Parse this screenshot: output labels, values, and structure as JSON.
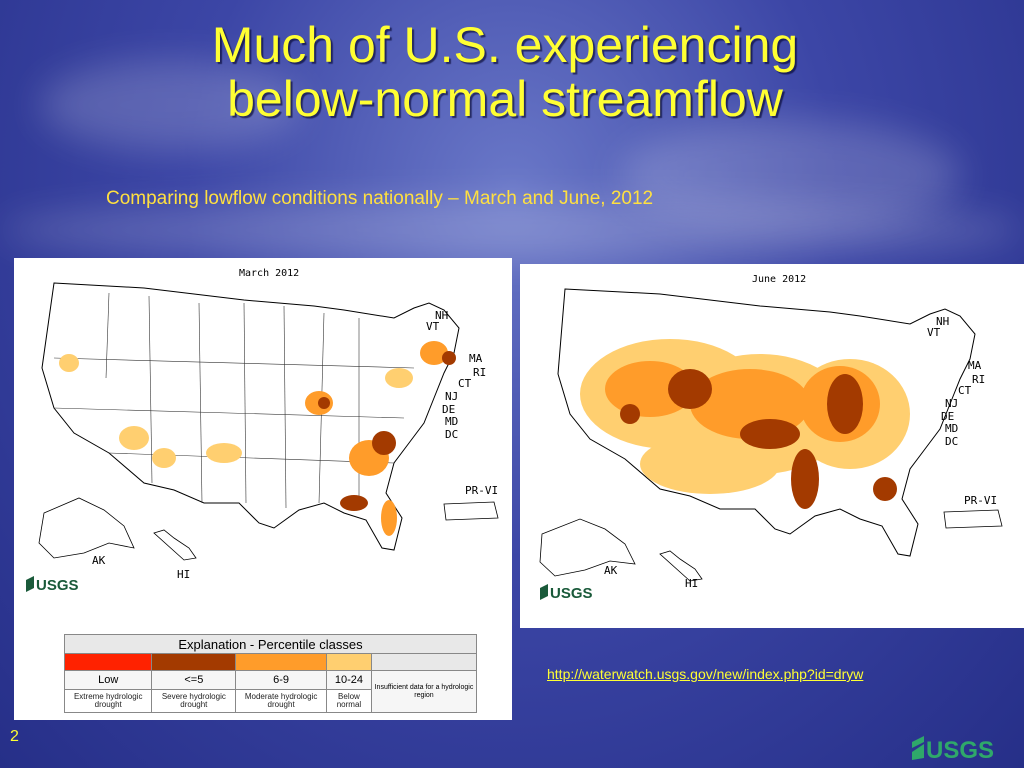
{
  "slide": {
    "title_line1": "Much of U.S. experiencing",
    "title_line2": "below-normal streamflow",
    "subtitle": "Comparing lowflow conditions nationally – March and June, 2012",
    "link": "http://waterwatch.usgs.gov/new/index.php?id=dryw",
    "page_number": "2",
    "logo": "USGS"
  },
  "maps": [
    {
      "title": "March 2012",
      "logo": "USGS"
    },
    {
      "title": "June 2012",
      "logo": "USGS"
    }
  ],
  "state_labels": {
    "nh": "NH",
    "vt": "VT",
    "ma": "MA",
    "ri": "RI",
    "ct": "CT",
    "nj": "NJ",
    "de": "DE",
    "md": "MD",
    "dc": "DC",
    "pr": "PR-VI",
    "ak": "AK",
    "hi": "HI"
  },
  "legend": {
    "title": "Explanation - Percentile classes",
    "classes": [
      {
        "value": "Low",
        "description": "Extreme hydrologic drought",
        "color": "#ff2200"
      },
      {
        "value": "<=5",
        "description": "Severe hydrologic drought",
        "color": "#a33a00"
      },
      {
        "value": "6-9",
        "description": "Moderate hydrologic drought",
        "color": "#ff9c2a"
      },
      {
        "value": "10-24",
        "description": "Below normal",
        "color": "#ffcf70"
      },
      {
        "value": "",
        "description": "Insufficient data for a hydrologic region",
        "color": "#e8e8e8"
      }
    ]
  }
}
